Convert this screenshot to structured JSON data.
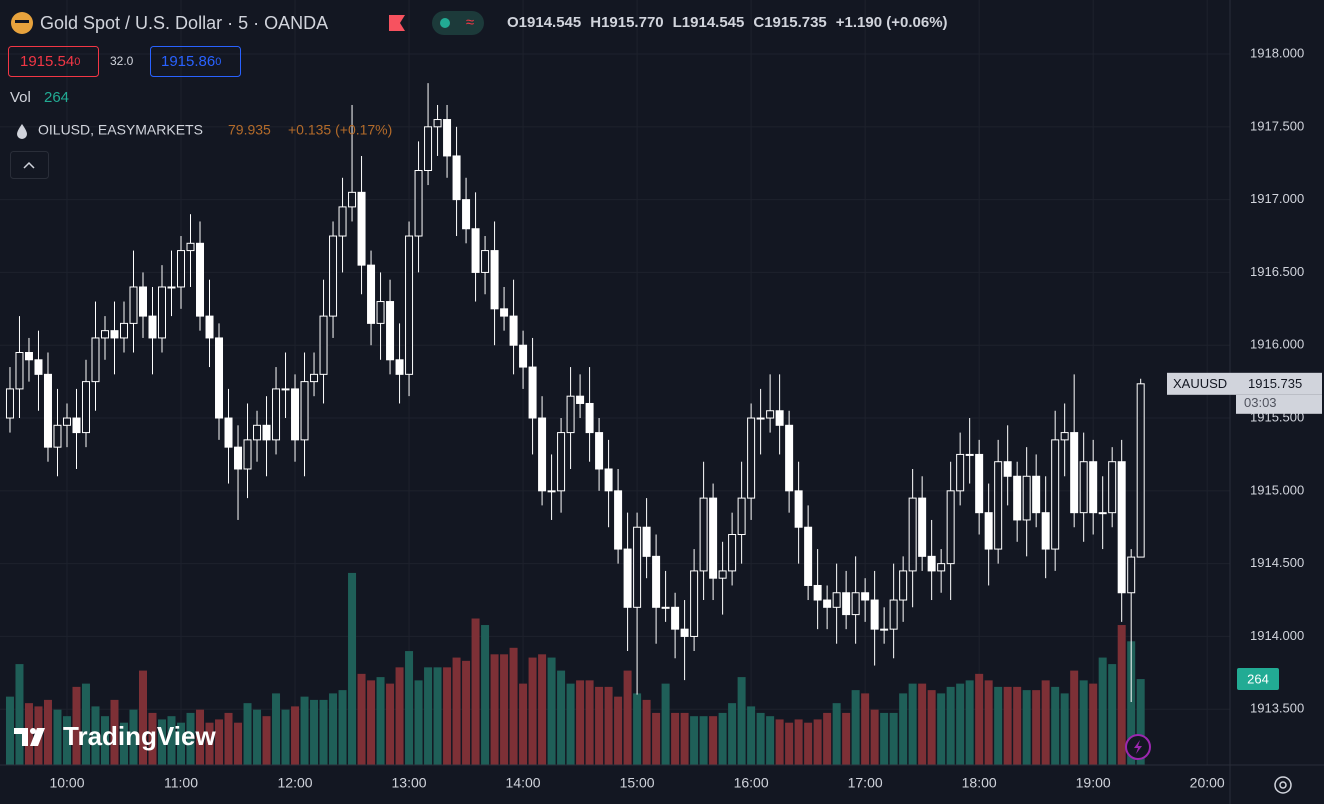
{
  "header": {
    "title": "Gold Spot / U.S. Dollar · 5 · OANDA",
    "ohlc": [
      "O1914.545",
      "H1915.770",
      "L1914.545",
      "C1915.735",
      "+1.190 (+0.06%)"
    ],
    "bid": [
      "1915.54",
      "0"
    ],
    "spread": "32.0",
    "ask": [
      "1915.86",
      "0"
    ],
    "vol_label": "Vol",
    "vol_value": "264",
    "overlay": {
      "symbol": "OILUSD, EASYMARKETS",
      "price": "79.935",
      "change": "+0.135 (+0.17%)"
    }
  },
  "price_tag": {
    "symbol": "XAUUSD",
    "price": "1915.735",
    "countdown": "03:03"
  },
  "volume_tag": "264",
  "logo": "TradingView",
  "chart_data": {
    "type": "candlestick",
    "open": [
      1915.5,
      1915.7,
      1915.95,
      1915.9,
      1915.8,
      1915.3,
      1915.45,
      1915.5,
      1915.4,
      1915.75,
      1916.05,
      1916.1,
      1916.05,
      1916.15,
      1916.4,
      1916.2,
      1916.05,
      1916.4,
      1916.4,
      1916.65,
      1916.7,
      1916.2,
      1916.05,
      1915.5,
      1915.3,
      1915.15,
      1915.35,
      1915.45,
      1915.35,
      1915.7,
      1915.7,
      1915.35,
      1915.75,
      1915.8,
      1916.2,
      1916.75,
      1916.95,
      1917.05,
      1916.55,
      1916.15,
      1916.3,
      1915.9,
      1915.8,
      1916.75,
      1917.2,
      1917.5,
      1917.55,
      1917.3,
      1917.0,
      1916.8,
      1916.5,
      1916.65,
      1916.25,
      1916.2,
      1916.0,
      1915.85,
      1915.5,
      1915.0,
      1915.0,
      1915.4,
      1915.65,
      1915.6,
      1915.4,
      1915.15,
      1915.0,
      1914.6,
      1914.2,
      1914.75,
      1914.55,
      1914.2,
      1914.2,
      1914.05,
      1914.0,
      1914.45,
      1914.95,
      1914.4,
      1914.45,
      1914.7,
      1914.95,
      1915.5,
      1915.5,
      1915.55,
      1915.45,
      1915.0,
      1914.75,
      1914.35,
      1914.25,
      1914.2,
      1914.3,
      1914.15,
      1914.3,
      1914.25,
      1914.05,
      1914.05,
      1914.25,
      1914.45,
      1914.95,
      1914.55,
      1914.45,
      1914.5,
      1915.0,
      1915.25,
      1915.25,
      1914.85,
      1914.6,
      1915.2,
      1915.1,
      1914.8,
      1915.1,
      1914.85,
      1914.6,
      1915.35,
      1915.4,
      1914.85,
      1915.2,
      1914.85,
      1914.85,
      1915.2,
      1914.3,
      1914.545
    ],
    "high": [
      1915.85,
      1916.2,
      1916.05,
      1916.1,
      1915.95,
      1915.7,
      1915.6,
      1915.7,
      1915.9,
      1916.3,
      1916.2,
      1916.3,
      1916.3,
      1916.65,
      1916.5,
      1916.4,
      1916.55,
      1916.65,
      1916.75,
      1916.9,
      1916.85,
      1916.45,
      1916.15,
      1915.7,
      1915.45,
      1915.6,
      1915.55,
      1915.65,
      1915.85,
      1915.95,
      1915.8,
      1915.95,
      1915.95,
      1916.45,
      1916.85,
      1917.15,
      1917.65,
      1917.3,
      1916.65,
      1916.5,
      1916.45,
      1916.15,
      1916.85,
      1917.4,
      1917.8,
      1917.65,
      1917.65,
      1917.5,
      1917.15,
      1917.05,
      1916.75,
      1916.85,
      1916.4,
      1916.45,
      1916.1,
      1916.05,
      1915.65,
      1915.25,
      1915.5,
      1915.85,
      1915.8,
      1915.85,
      1915.5,
      1915.35,
      1915.15,
      1914.85,
      1914.85,
      1914.95,
      1914.7,
      1914.45,
      1914.3,
      1914.25,
      1914.6,
      1915.2,
      1915.05,
      1914.65,
      1914.85,
      1915.2,
      1915.6,
      1915.7,
      1915.8,
      1915.8,
      1915.55,
      1915.2,
      1914.9,
      1914.6,
      1914.35,
      1914.5,
      1914.45,
      1914.55,
      1914.4,
      1914.45,
      1914.2,
      1914.5,
      1914.55,
      1915.15,
      1915.1,
      1914.8,
      1914.6,
      1915.2,
      1915.4,
      1915.5,
      1915.35,
      1915.05,
      1915.35,
      1915.45,
      1915.2,
      1915.3,
      1915.25,
      1915.1,
      1915.55,
      1915.6,
      1915.8,
      1915.4,
      1915.35,
      1915.1,
      1915.3,
      1915.35,
      1914.6,
      1915.77
    ],
    "low": [
      1915.4,
      1915.5,
      1915.75,
      1915.55,
      1915.2,
      1915.1,
      1915.3,
      1915.15,
      1915.3,
      1915.55,
      1915.9,
      1915.8,
      1915.95,
      1915.95,
      1916.05,
      1915.8,
      1915.95,
      1916.2,
      1916.25,
      1916.4,
      1916.1,
      1915.85,
      1915.35,
      1915.05,
      1914.8,
      1914.95,
      1915.2,
      1915.1,
      1915.25,
      1915.5,
      1915.2,
      1915.1,
      1915.65,
      1915.6,
      1916.05,
      1916.5,
      1916.85,
      1916.35,
      1916.0,
      1915.9,
      1915.8,
      1915.6,
      1915.65,
      1916.5,
      1917.1,
      1917.3,
      1917.15,
      1916.75,
      1916.7,
      1916.3,
      1916.35,
      1916.0,
      1916.1,
      1915.8,
      1915.7,
      1915.25,
      1914.9,
      1914.8,
      1914.85,
      1915.15,
      1915.5,
      1915.2,
      1915.0,
      1914.75,
      1914.5,
      1913.9,
      1913.6,
      1914.4,
      1913.95,
      1914.1,
      1913.85,
      1913.7,
      1913.9,
      1914.25,
      1914.25,
      1914.15,
      1914.35,
      1914.5,
      1914.8,
      1915.25,
      1915.4,
      1915.25,
      1914.85,
      1914.5,
      1914.25,
      1914.05,
      1914.05,
      1913.95,
      1914.05,
      1913.95,
      1914.1,
      1913.8,
      1913.95,
      1913.85,
      1914.1,
      1914.2,
      1914.45,
      1914.25,
      1914.3,
      1914.25,
      1914.9,
      1915.05,
      1914.7,
      1914.35,
      1914.5,
      1914.9,
      1914.65,
      1914.55,
      1914.75,
      1914.4,
      1914.45,
      1915.1,
      1914.75,
      1914.65,
      1914.7,
      1914.6,
      1914.75,
      1914.1,
      1913.55,
      1914.545
    ],
    "close": [
      1915.7,
      1915.95,
      1915.9,
      1915.8,
      1915.3,
      1915.45,
      1915.5,
      1915.4,
      1915.75,
      1916.05,
      1916.1,
      1916.05,
      1916.15,
      1916.4,
      1916.2,
      1916.05,
      1916.4,
      1916.4,
      1916.65,
      1916.7,
      1916.2,
      1916.05,
      1915.5,
      1915.3,
      1915.15,
      1915.35,
      1915.45,
      1915.35,
      1915.7,
      1915.7,
      1915.35,
      1915.75,
      1915.8,
      1916.2,
      1916.75,
      1916.95,
      1917.05,
      1916.55,
      1916.15,
      1916.3,
      1915.9,
      1915.8,
      1916.75,
      1917.2,
      1917.5,
      1917.55,
      1917.3,
      1917.0,
      1916.8,
      1916.5,
      1916.65,
      1916.25,
      1916.2,
      1916.0,
      1915.85,
      1915.5,
      1915.0,
      1915.0,
      1915.4,
      1915.65,
      1915.6,
      1915.4,
      1915.15,
      1915.0,
      1914.6,
      1914.2,
      1914.75,
      1914.55,
      1914.2,
      1914.2,
      1914.05,
      1914.0,
      1914.45,
      1914.95,
      1914.4,
      1914.45,
      1914.7,
      1914.95,
      1915.5,
      1915.5,
      1915.55,
      1915.45,
      1915.0,
      1914.75,
      1914.35,
      1914.25,
      1914.2,
      1914.3,
      1914.15,
      1914.3,
      1914.25,
      1914.05,
      1914.05,
      1914.25,
      1914.45,
      1914.95,
      1914.55,
      1914.45,
      1914.5,
      1915.0,
      1915.25,
      1915.25,
      1914.85,
      1914.6,
      1915.2,
      1915.1,
      1914.8,
      1915.1,
      1914.85,
      1914.6,
      1915.35,
      1915.4,
      1914.85,
      1915.2,
      1914.85,
      1914.85,
      1915.2,
      1914.3,
      1914.545,
      1915.735
    ],
    "volume": [
      210,
      310,
      190,
      180,
      200,
      170,
      150,
      240,
      250,
      180,
      150,
      200,
      130,
      170,
      290,
      160,
      140,
      150,
      130,
      160,
      170,
      130,
      140,
      160,
      130,
      190,
      170,
      150,
      220,
      170,
      180,
      210,
      200,
      200,
      220,
      230,
      590,
      280,
      260,
      270,
      250,
      300,
      350,
      260,
      300,
      300,
      300,
      330,
      320,
      450,
      430,
      340,
      340,
      360,
      250,
      330,
      340,
      330,
      290,
      250,
      260,
      260,
      240,
      240,
      210,
      290,
      220,
      200,
      160,
      250,
      160,
      160,
      150,
      150,
      150,
      160,
      190,
      270,
      180,
      160,
      150,
      140,
      130,
      140,
      130,
      140,
      160,
      190,
      160,
      230,
      220,
      170,
      160,
      160,
      220,
      250,
      250,
      230,
      220,
      240,
      250,
      260,
      280,
      260,
      240,
      240,
      240,
      230,
      230,
      260,
      240,
      220,
      290,
      260,
      250,
      330,
      310,
      430,
      380,
      264
    ],
    "ylim": [
      1913.117,
      1918.371
    ],
    "yticks": [
      {
        "value": 1913.5,
        "label": "1913.500"
      },
      {
        "value": 1914,
        "label": "1914.000"
      },
      {
        "value": 1914.5,
        "label": "1914.500"
      },
      {
        "value": 1915,
        "label": "1915.000"
      },
      {
        "value": 1915.5,
        "label": "1915.500"
      },
      {
        "value": 1916,
        "label": "1916.000"
      },
      {
        "value": 1916.5,
        "label": "1916.500"
      },
      {
        "value": 1917,
        "label": "1917.000"
      },
      {
        "value": 1917.5,
        "label": "1917.500"
      },
      {
        "value": 1918,
        "label": "1918.000"
      }
    ],
    "xlim": [
      -1.05,
      128.4
    ],
    "xticks": [
      {
        "value": 6,
        "label": "10:00"
      },
      {
        "value": 18,
        "label": "11:00"
      },
      {
        "value": 30,
        "label": "12:00"
      },
      {
        "value": 42,
        "label": "13:00"
      },
      {
        "value": 54,
        "label": "14:00"
      },
      {
        "value": 66,
        "label": "15:00"
      },
      {
        "value": 78,
        "label": "16:00"
      },
      {
        "value": 90,
        "label": "17:00"
      },
      {
        "value": 102,
        "label": "18:00"
      },
      {
        "value": 114,
        "label": "19:00"
      },
      {
        "value": 126,
        "label": "20:00"
      }
    ],
    "vol_lim": [
      0,
      2350
    ],
    "candle_color": "#ffffff",
    "up_volume_color": "#1f5f58",
    "down_volume_color": "#7d3036",
    "grid": true
  }
}
